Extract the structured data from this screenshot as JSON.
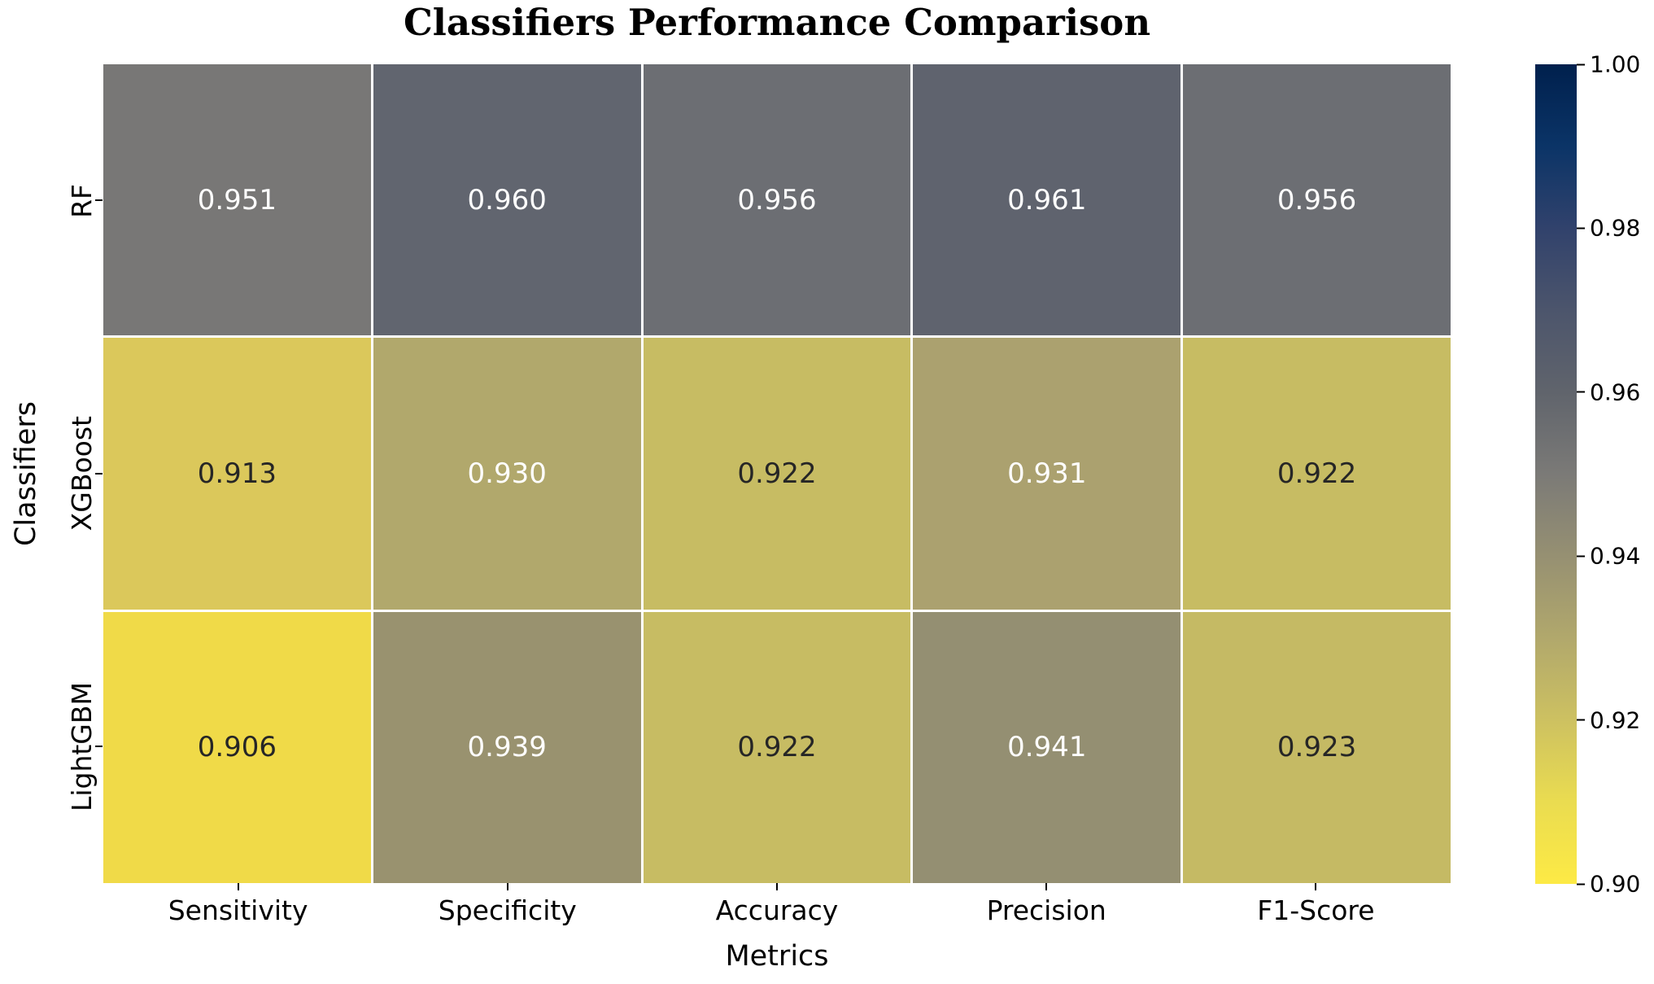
{
  "chart_data": {
    "type": "heatmap",
    "title": "Classifiers Performance Comparison",
    "xlabel": "Metrics",
    "ylabel": "Classifiers",
    "columns": [
      "Sensitivity",
      "Specificity",
      "Accuracy",
      "Precision",
      "F1-Score"
    ],
    "rows": [
      "RF",
      "XGBoost",
      "LightGBM"
    ],
    "values": [
      [
        0.951,
        0.96,
        0.956,
        0.961,
        0.956
      ],
      [
        0.913,
        0.93,
        0.922,
        0.931,
        0.922
      ],
      [
        0.906,
        0.939,
        0.922,
        0.941,
        0.923
      ]
    ],
    "cells": [
      {
        "row": "RF",
        "col": "Sensitivity",
        "display": "0.951",
        "bg": "#787776",
        "fg": "#FFFFFF"
      },
      {
        "row": "RF",
        "col": "Specificity",
        "display": "0.960",
        "bg": "#61656F",
        "fg": "#FFFFFF"
      },
      {
        "row": "RF",
        "col": "Accuracy",
        "display": "0.956",
        "bg": "#6C6E73",
        "fg": "#FFFFFF"
      },
      {
        "row": "RF",
        "col": "Precision",
        "display": "0.961",
        "bg": "#5F636E",
        "fg": "#FFFFFF"
      },
      {
        "row": "RF",
        "col": "F1-Score",
        "display": "0.956",
        "bg": "#6C6E73",
        "fg": "#FFFFFF"
      },
      {
        "row": "XGBoost",
        "col": "Sensitivity",
        "display": "0.913",
        "bg": "#DBC85B",
        "fg": "#262626"
      },
      {
        "row": "XGBoost",
        "col": "Specificity",
        "display": "0.930",
        "bg": "#B1A86C",
        "fg": "#FFFFFF"
      },
      {
        "row": "XGBoost",
        "col": "Accuracy",
        "display": "0.922",
        "bg": "#C7BC63",
        "fg": "#262626"
      },
      {
        "row": "XGBoost",
        "col": "Precision",
        "display": "0.931",
        "bg": "#ABA16F",
        "fg": "#FFFFFF"
      },
      {
        "row": "XGBoost",
        "col": "F1-Score",
        "display": "0.922",
        "bg": "#C7BC63",
        "fg": "#262626"
      },
      {
        "row": "LightGBM",
        "col": "Sensitivity",
        "display": "0.906",
        "bg": "#F0DA48",
        "fg": "#262626"
      },
      {
        "row": "LightGBM",
        "col": "Specificity",
        "display": "0.939",
        "bg": "#99926F",
        "fg": "#FFFFFF"
      },
      {
        "row": "LightGBM",
        "col": "Accuracy",
        "display": "0.922",
        "bg": "#C7BC63",
        "fg": "#262626"
      },
      {
        "row": "LightGBM",
        "col": "Precision",
        "display": "0.941",
        "bg": "#948F72",
        "fg": "#FFFFFF"
      },
      {
        "row": "LightGBM",
        "col": "F1-Score",
        "display": "0.923",
        "bg": "#C5BA64",
        "fg": "#262626"
      }
    ],
    "colorbar": {
      "cmap": "cividis_r",
      "vmin": 0.9,
      "vmax": 1.0,
      "ticks": [
        "1.00",
        "0.98",
        "0.96",
        "0.94",
        "0.92",
        "0.90"
      ],
      "gradient_stops_top_to_bottom": [
        "#00204D",
        "#0B3467",
        "#31426C",
        "#4C556C",
        "#60646C",
        "#7B7A77",
        "#969072",
        "#B1A86C",
        "#CDC161",
        "#EADC50",
        "#FDEA45"
      ]
    },
    "layout": {
      "grid": false,
      "legend": "colorbar-right",
      "cell_gap_color": "#FFFFFF"
    }
  }
}
